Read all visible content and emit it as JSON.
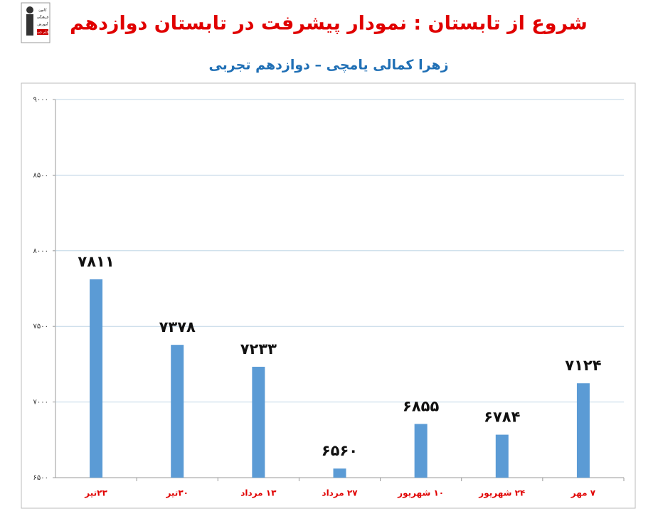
{
  "logo": [
    "کانون",
    "فرهنگی",
    "آموزش",
    "قلم چی"
  ],
  "chart_data": {
    "type": "bar",
    "title": "شروع از تابستان : نمودار پیشرفت در تابستان دوازدهم",
    "subtitle": "زهرا کمالی یامچی – دوازدهم تجربی",
    "categories": [
      "۲۳تیر",
      "۳۰تیر",
      "۱۳ مرداد",
      "۲۷ مرداد",
      "۱۰ شهریور",
      "۲۴ شهریور",
      "۷ مهر"
    ],
    "values": [
      7811,
      7378,
      7233,
      6560,
      6855,
      6784,
      7124
    ],
    "value_labels": [
      "۷۸۱۱",
      "۷۳۷۸",
      "۷۲۳۳",
      "۶۵۶۰",
      "۶۸۵۵",
      "۶۷۸۴",
      "۷۱۲۴"
    ],
    "color": "#5b9bd5",
    "ylim": [
      6500,
      9000
    ],
    "yticks": [
      {
        "value": 6500,
        "label": "۶۵۰۰"
      },
      {
        "value": 7000,
        "label": "۷۰۰۰"
      },
      {
        "value": 7500,
        "label": "۷۵۰۰"
      },
      {
        "value": 8000,
        "label": "۸۰۰۰"
      },
      {
        "value": 8500,
        "label": "۸۵۰۰"
      },
      {
        "value": 9000,
        "label": "۹۰۰۰"
      }
    ],
    "grid": true
  }
}
